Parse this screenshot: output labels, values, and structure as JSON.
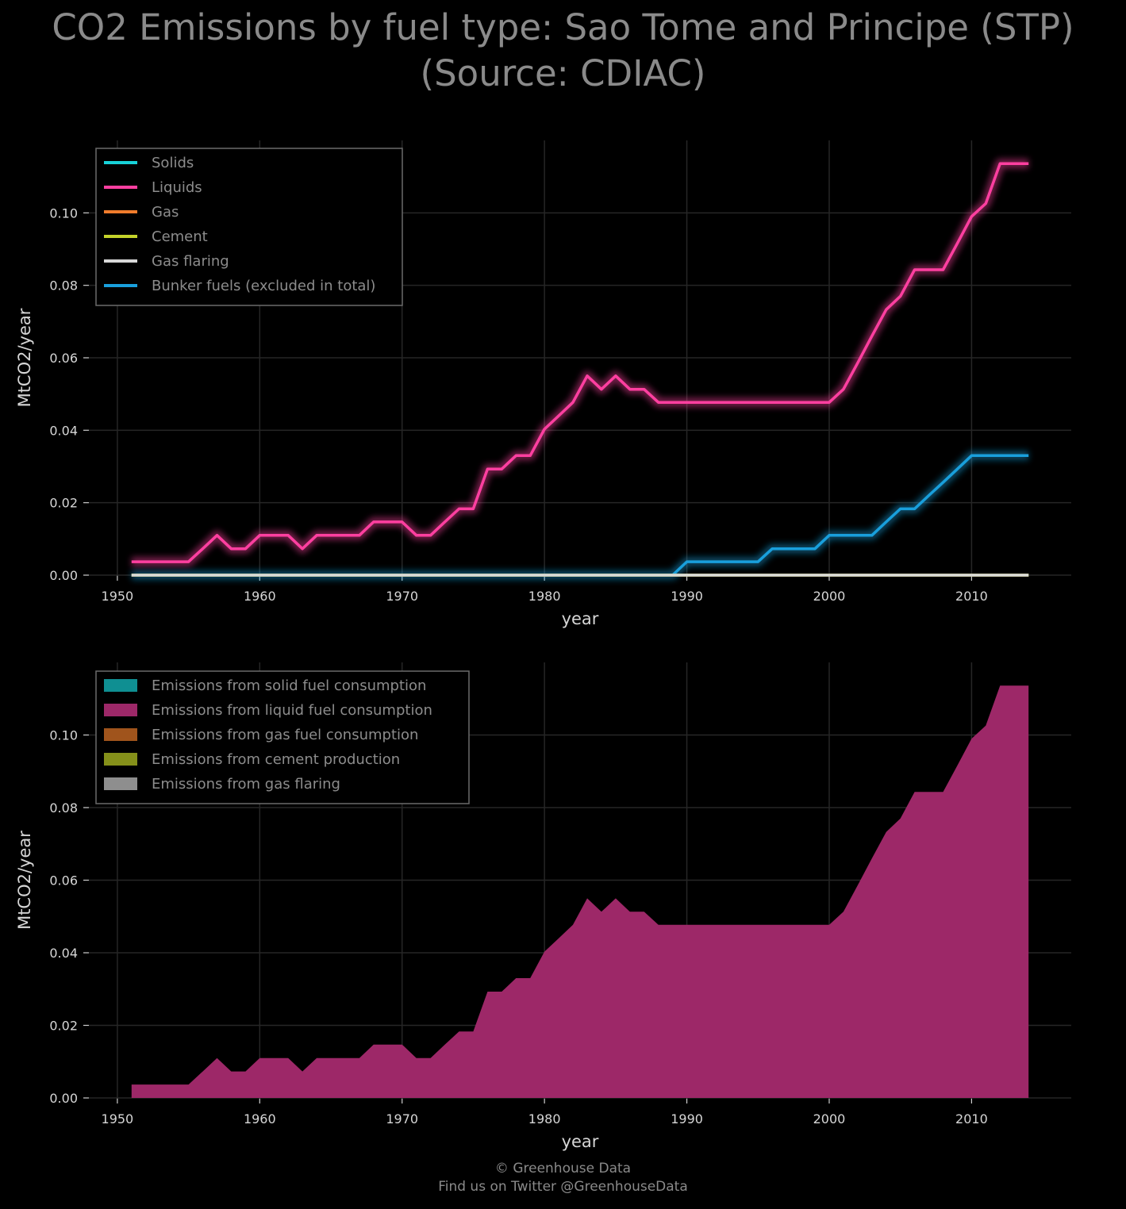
{
  "title_line1": "CO2 Emissions by fuel type: Sao Tome and Principe (STP)",
  "title_line2": "(Source: CDIAC)",
  "footer_line1": "© Greenhouse Data",
  "footer_line2": "Find us on Twitter @GreenhouseData",
  "colors": {
    "solids": "#17d2d8",
    "liquids": "#ff3fa0",
    "gas": "#f07c2c",
    "cement": "#c4d22a",
    "flaring": "#d8d8d8",
    "bunker": "#199fdc",
    "area_solid": "#0f8f92",
    "area_liquid": "#9d2868",
    "area_gas": "#a0541c",
    "area_cement": "#85901a",
    "area_flaring": "#8e8e8e",
    "grid": "#262626",
    "legend_border": "#6a6a6a"
  },
  "chart_data": [
    {
      "type": "line",
      "xlabel": "year",
      "ylabel": "MtCO2/year",
      "xlim": [
        1948,
        2017
      ],
      "ylim": [
        0,
        0.12
      ],
      "xticks": [
        "1950",
        "1960",
        "1970",
        "1980",
        "1990",
        "2000",
        "2010"
      ],
      "yticks": [
        "0.00",
        "0.02",
        "0.04",
        "0.06",
        "0.08",
        "0.10"
      ],
      "grid": true,
      "legend_placement": "upper-left",
      "x": [
        1951,
        1952,
        1953,
        1954,
        1955,
        1956,
        1957,
        1958,
        1959,
        1960,
        1961,
        1962,
        1963,
        1964,
        1965,
        1966,
        1967,
        1968,
        1969,
        1970,
        1971,
        1972,
        1973,
        1974,
        1975,
        1976,
        1977,
        1978,
        1979,
        1980,
        1981,
        1982,
        1983,
        1984,
        1985,
        1986,
        1987,
        1988,
        1989,
        1990,
        1991,
        1992,
        1993,
        1994,
        1995,
        1996,
        1997,
        1998,
        1999,
        2000,
        2001,
        2002,
        2003,
        2004,
        2005,
        2006,
        2007,
        2008,
        2009,
        2010,
        2011,
        2012,
        2013,
        2014
      ],
      "series": [
        {
          "name": "Solids",
          "color_key": "solids",
          "values": [
            0,
            0,
            0,
            0,
            0,
            0,
            0,
            0,
            0,
            0,
            0,
            0,
            0,
            0,
            0,
            0,
            0,
            0,
            0,
            0,
            0,
            0,
            0,
            0,
            0,
            0,
            0,
            0,
            0,
            0,
            0,
            0,
            0,
            0,
            0,
            0,
            0,
            0,
            0,
            0,
            0,
            0,
            0,
            0,
            0,
            0,
            0,
            0,
            0,
            0,
            0,
            0,
            0,
            0,
            0,
            0,
            0,
            0,
            0,
            0,
            0,
            0,
            0,
            0
          ]
        },
        {
          "name": "Liquids",
          "color_key": "liquids",
          "values": [
            0.0037,
            0.0037,
            0.0037,
            0.0037,
            0.0037,
            0.0073,
            0.011,
            0.0073,
            0.0073,
            0.011,
            0.011,
            0.011,
            0.0073,
            0.011,
            0.011,
            0.011,
            0.011,
            0.0147,
            0.0147,
            0.0147,
            0.011,
            0.011,
            0.0147,
            0.0183,
            0.0183,
            0.0293,
            0.0293,
            0.033,
            0.033,
            0.0403,
            0.044,
            0.0477,
            0.055,
            0.0513,
            0.055,
            0.0513,
            0.0513,
            0.0477,
            0.0477,
            0.0477,
            0.0477,
            0.0477,
            0.0477,
            0.0477,
            0.0477,
            0.0477,
            0.0477,
            0.0477,
            0.0477,
            0.0477,
            0.0513,
            0.0586,
            0.066,
            0.0733,
            0.077,
            0.0843,
            0.0843,
            0.0843,
            0.0916,
            0.099,
            0.1026,
            0.1136,
            0.1136,
            0.1136
          ]
        },
        {
          "name": "Gas",
          "color_key": "gas",
          "values": [
            0,
            0,
            0,
            0,
            0,
            0,
            0,
            0,
            0,
            0,
            0,
            0,
            0,
            0,
            0,
            0,
            0,
            0,
            0,
            0,
            0,
            0,
            0,
            0,
            0,
            0,
            0,
            0,
            0,
            0,
            0,
            0,
            0,
            0,
            0,
            0,
            0,
            0,
            0,
            0,
            0,
            0,
            0,
            0,
            0,
            0,
            0,
            0,
            0,
            0,
            0,
            0,
            0,
            0,
            0,
            0,
            0,
            0,
            0,
            0,
            0,
            0,
            0,
            0
          ]
        },
        {
          "name": "Cement",
          "color_key": "cement",
          "values": [
            0,
            0,
            0,
            0,
            0,
            0,
            0,
            0,
            0,
            0,
            0,
            0,
            0,
            0,
            0,
            0,
            0,
            0,
            0,
            0,
            0,
            0,
            0,
            0,
            0,
            0,
            0,
            0,
            0,
            0,
            0,
            0,
            0,
            0,
            0,
            0,
            0,
            0,
            0,
            0,
            0,
            0,
            0,
            0,
            0,
            0,
            0,
            0,
            0,
            0,
            0,
            0,
            0,
            0,
            0,
            0,
            0,
            0,
            0,
            0,
            0,
            0,
            0,
            0
          ]
        },
        {
          "name": "Gas flaring",
          "color_key": "flaring",
          "values": [
            0,
            0,
            0,
            0,
            0,
            0,
            0,
            0,
            0,
            0,
            0,
            0,
            0,
            0,
            0,
            0,
            0,
            0,
            0,
            0,
            0,
            0,
            0,
            0,
            0,
            0,
            0,
            0,
            0,
            0,
            0,
            0,
            0,
            0,
            0,
            0,
            0,
            0,
            0,
            0,
            0,
            0,
            0,
            0,
            0,
            0,
            0,
            0,
            0,
            0,
            0,
            0,
            0,
            0,
            0,
            0,
            0,
            0,
            0,
            0,
            0,
            0,
            0,
            0
          ]
        },
        {
          "name": "Bunker fuels (excluded in total)",
          "color_key": "bunker",
          "values": [
            0,
            0,
            0,
            0,
            0,
            0,
            0,
            0,
            0,
            0,
            0,
            0,
            0,
            0,
            0,
            0,
            0,
            0,
            0,
            0,
            0,
            0,
            0,
            0,
            0,
            0,
            0,
            0,
            0,
            0,
            0,
            0,
            0,
            0,
            0,
            0,
            0,
            0,
            0,
            0.0037,
            0.0037,
            0.0037,
            0.0037,
            0.0037,
            0.0037,
            0.0073,
            0.0073,
            0.0073,
            0.0073,
            0.011,
            0.011,
            0.011,
            0.011,
            0.0147,
            0.0183,
            0.0183,
            0.022,
            0.0256,
            0.0293,
            0.033,
            0.033,
            0.033,
            0.033,
            0.033
          ]
        }
      ]
    },
    {
      "type": "area",
      "stacked": true,
      "xlabel": "year",
      "ylabel": "MtCO2/year",
      "xlim": [
        1948,
        2017
      ],
      "ylim": [
        0,
        0.12
      ],
      "xticks": [
        "1950",
        "1960",
        "1970",
        "1980",
        "1990",
        "2000",
        "2010"
      ],
      "yticks": [
        "0.00",
        "0.02",
        "0.04",
        "0.06",
        "0.08",
        "0.10"
      ],
      "grid": true,
      "legend_placement": "upper-left",
      "series": [
        {
          "name": "Emissions from solid fuel consumption",
          "color_key": "area_solid",
          "source": 0
        },
        {
          "name": "Emissions from liquid fuel consumption",
          "color_key": "area_liquid",
          "source": 1
        },
        {
          "name": "Emissions from gas fuel consumption",
          "color_key": "area_gas",
          "source": 2
        },
        {
          "name": "Emissions from cement production",
          "color_key": "area_cement",
          "source": 3
        },
        {
          "name": "Emissions from gas flaring",
          "color_key": "area_flaring",
          "source": 4
        }
      ]
    }
  ]
}
